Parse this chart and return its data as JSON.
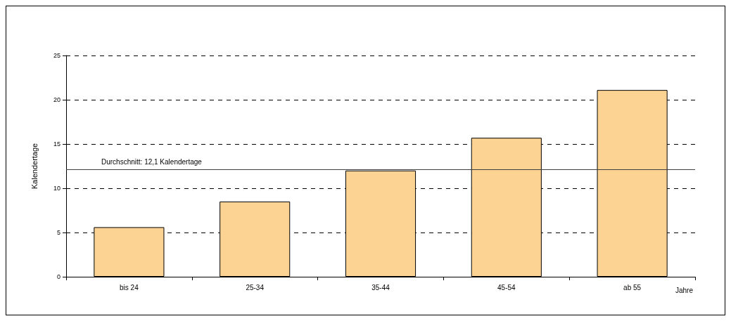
{
  "chart_data": {
    "type": "bar",
    "ylabel": "Kalendertage",
    "xlabel": "Jahre",
    "categories": [
      "bis 24",
      "25-34",
      "35-44",
      "45-54",
      "ab 55"
    ],
    "values": [
      5.6,
      8.5,
      12.0,
      15.7,
      21.1
    ],
    "color": "#fdd393",
    "ylim": [
      0,
      25
    ],
    "yticks": [
      0,
      5,
      10,
      15,
      20,
      25
    ],
    "grid": "y",
    "ref_lines": [
      {
        "axis": "y",
        "value": 12.1,
        "label": "Durchschnitt: 12,1 Kalendertage",
        "color": "#404040",
        "line_style": "solid"
      }
    ]
  }
}
